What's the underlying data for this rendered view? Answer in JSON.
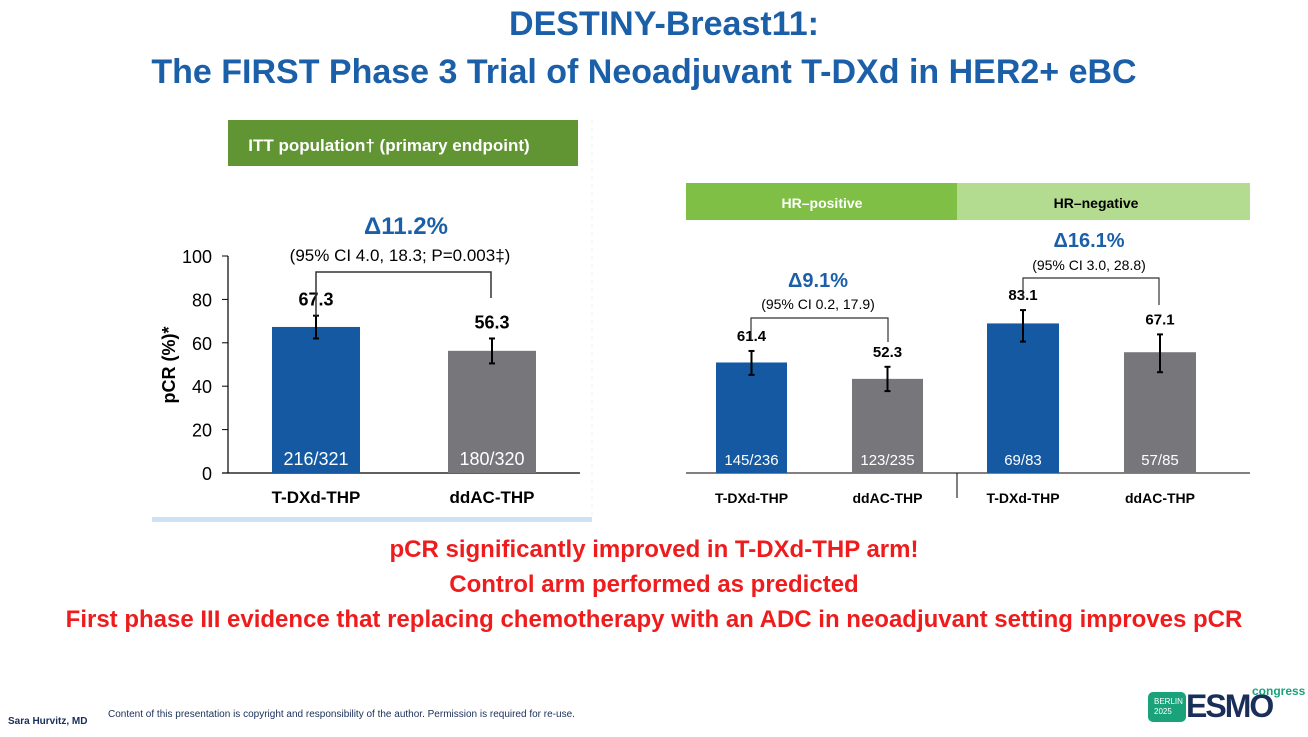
{
  "header": {
    "title_line1": "DESTINY-Breast11:",
    "title_line2": "The FIRST Phase 3 Trial of Neoadjuvant T-DXd in HER2+ eBC"
  },
  "colors": {
    "title": "#1b5fa8",
    "tdxd": "#1459a1",
    "ddac": "#77777b",
    "green_dark": "#619433",
    "green_mid": "#7fbf45",
    "green_light": "#b4dc90",
    "message": "#ee1c1c"
  },
  "chart_data": [
    {
      "type": "bar",
      "panel_label": "ITT population† (primary endpoint)",
      "ylabel": "pCR (%)*",
      "ylim": [
        0,
        100
      ],
      "yticks": [
        "0",
        "20",
        "40",
        "60",
        "80",
        "100"
      ],
      "categories": [
        "T-DXd-THP",
        "ddAC-THP"
      ],
      "values": [
        67.3,
        56.3
      ],
      "value_labels": [
        "67.3",
        "56.3"
      ],
      "n_labels": [
        "216/321",
        "180/320"
      ],
      "error_low": [
        62.0,
        50.5
      ],
      "error_high": [
        72.5,
        62.0
      ],
      "delta": "Δ11.2%",
      "ci": "(95% CI 4.0, 18.3; P=0.003‡)"
    },
    {
      "type": "bar",
      "panel_label": "HR–positive",
      "ylim": [
        0,
        100
      ],
      "categories": [
        "T-DXd-THP",
        "ddAC-THP"
      ],
      "values": [
        61.4,
        52.3
      ],
      "value_labels": [
        "61.4",
        "52.3"
      ],
      "n_labels": [
        "145/236",
        "123/235"
      ],
      "error_low": [
        54.5,
        45.5
      ],
      "error_high": [
        67.8,
        59.0
      ],
      "delta": "Δ9.1%",
      "ci": "(95% CI 0.2, 17.9)"
    },
    {
      "type": "bar",
      "panel_label": "HR–negative",
      "ylim": [
        0,
        100
      ],
      "categories": [
        "T-DXd-THP",
        "ddAC-THP"
      ],
      "values": [
        83.1,
        67.1
      ],
      "value_labels": [
        "83.1",
        "67.1"
      ],
      "n_labels": [
        "69/83",
        "57/85"
      ],
      "error_low": [
        73.0,
        56.0
      ],
      "error_high": [
        90.5,
        77.0
      ],
      "delta": "Δ16.1%",
      "ci": "(95% CI 3.0, 28.8)"
    }
  ],
  "messages": [
    "pCR significantly improved in T-DXd-THP arm!",
    "Control arm performed as predicted",
    "First phase III evidence that replacing chemotherapy with an ADC in neoadjuvant setting improves pCR"
  ],
  "footer": {
    "author": "Sara Hurvitz, MD",
    "copyright": "Content of this presentation is copyright and responsibility of the author. Permission is required for re-use.",
    "logo_city": "BERLIN",
    "logo_year": "2025",
    "logo_text": "ESMO",
    "logo_suffix": "congress"
  }
}
